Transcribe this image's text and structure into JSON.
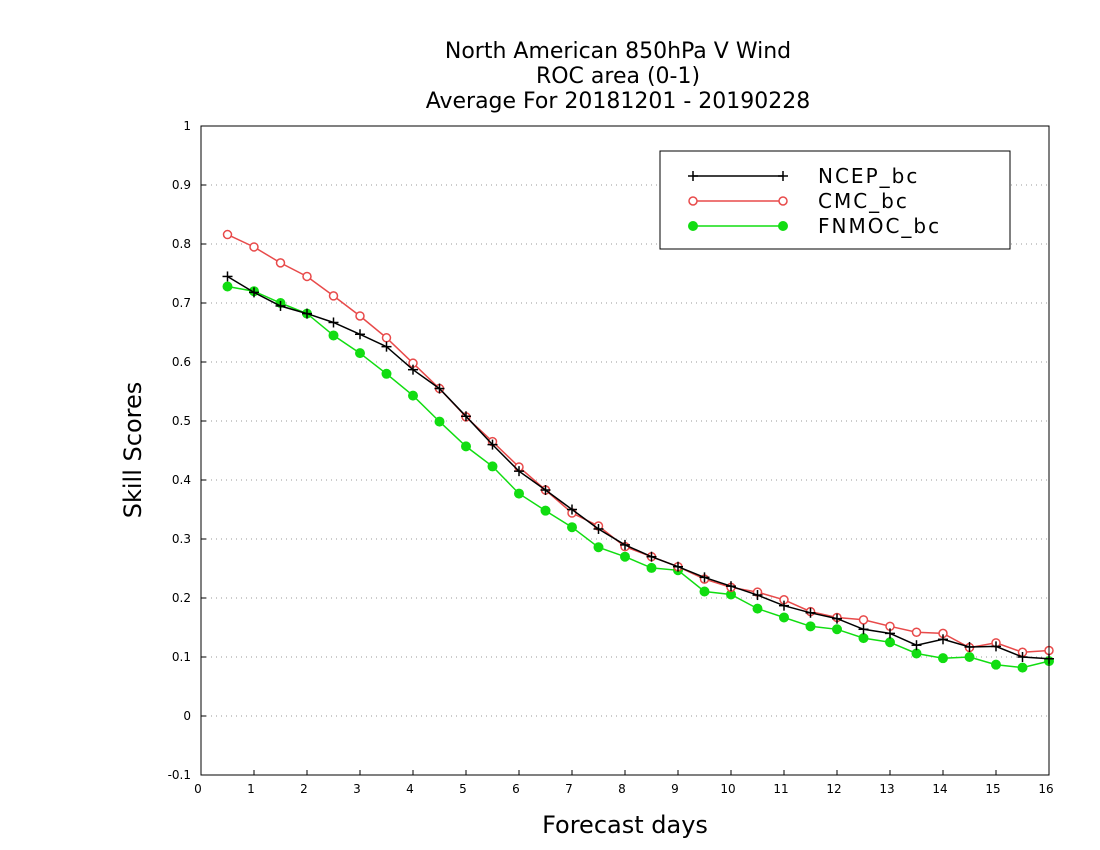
{
  "chart_data": {
    "type": "line",
    "title": [
      "North American 850hPa V Wind",
      "ROC area (0-1)",
      "Average For 20181201 - 20190228"
    ],
    "xlabel": "Forecast days",
    "ylabel": "Skill Scores",
    "xlim": [
      0,
      16
    ],
    "ylim": [
      -0.1,
      1
    ],
    "xticks": [
      "0",
      "1",
      "2",
      "3",
      "4",
      "5",
      "6",
      "7",
      "8",
      "9",
      "10",
      "11",
      "12",
      "13",
      "14",
      "15",
      "16"
    ],
    "yticks": [
      "-0.1",
      "0",
      "0.1",
      "0.2",
      "0.3",
      "0.4",
      "0.5",
      "0.6",
      "0.7",
      "0.8",
      "0.9",
      "1"
    ],
    "grid": true,
    "legend_position": "top-right",
    "x": [
      0.5,
      1,
      1.5,
      2,
      2.5,
      3,
      3.5,
      4,
      4.5,
      5,
      5.5,
      6,
      6.5,
      7,
      7.5,
      8,
      8.5,
      9,
      9.5,
      10,
      10.5,
      11,
      11.5,
      12,
      12.5,
      13,
      13.5,
      14,
      14.5,
      15,
      15.5,
      16
    ],
    "series": [
      {
        "name": "NCEP_bc",
        "color": "#000000",
        "marker": "plus",
        "values": [
          0.745,
          0.718,
          0.695,
          0.682,
          0.667,
          0.647,
          0.626,
          0.587,
          0.555,
          0.508,
          0.46,
          0.415,
          0.383,
          0.35,
          0.317,
          0.29,
          0.27,
          0.253,
          0.235,
          0.22,
          0.205,
          0.187,
          0.175,
          0.165,
          0.147,
          0.14,
          0.12,
          0.13,
          0.117,
          0.118,
          0.1,
          0.097
        ]
      },
      {
        "name": "CMC_bc",
        "color": "#e84a4a",
        "marker": "open-circle",
        "values": [
          0.816,
          0.795,
          0.768,
          0.745,
          0.712,
          0.678,
          0.641,
          0.598,
          0.555,
          0.507,
          0.465,
          0.422,
          0.383,
          0.344,
          0.322,
          0.287,
          0.27,
          0.253,
          0.232,
          0.218,
          0.21,
          0.197,
          0.177,
          0.167,
          0.163,
          0.152,
          0.142,
          0.14,
          0.116,
          0.124,
          0.108,
          0.111
        ]
      },
      {
        "name": "FNMOC_bc",
        "color": "#11dd11",
        "marker": "filled-circle",
        "values": [
          0.728,
          0.72,
          0.7,
          0.682,
          0.645,
          0.615,
          0.58,
          0.543,
          0.499,
          0.457,
          0.423,
          0.377,
          0.348,
          0.32,
          0.286,
          0.27,
          0.251,
          0.247,
          0.211,
          0.206,
          0.182,
          0.167,
          0.152,
          0.147,
          0.132,
          0.125,
          0.106,
          0.098,
          0.1,
          0.087,
          0.082,
          0.093
        ]
      }
    ]
  }
}
